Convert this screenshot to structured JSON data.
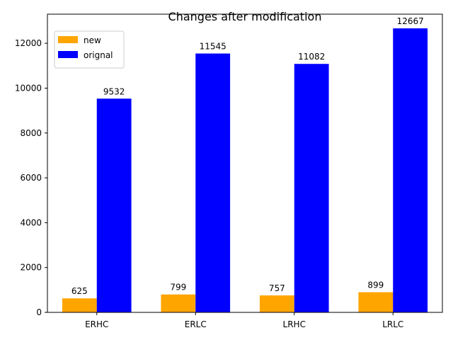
{
  "chart_data": {
    "type": "bar",
    "title": "Changes after modification",
    "xlabel": "",
    "ylabel": "",
    "categories": [
      "ERHC",
      "ERLC",
      "LRHC",
      "LRLC"
    ],
    "series": [
      {
        "name": "new",
        "color": "#ffa500",
        "values": [
          625,
          799,
          757,
          899
        ]
      },
      {
        "name": "orignal",
        "color": "#0000ff",
        "values": [
          9532,
          11545,
          11082,
          12667
        ]
      }
    ],
    "ylim": [
      0,
      13300
    ],
    "yticks": [
      0,
      2000,
      4000,
      6000,
      8000,
      10000,
      12000
    ],
    "grid": false,
    "legend_position": "top-left"
  }
}
